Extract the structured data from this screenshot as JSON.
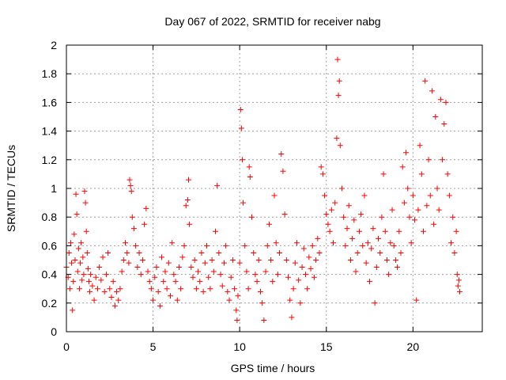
{
  "chart_data": {
    "type": "scatter",
    "title": "Day 067 of 2022, SRMTID for receiver nabg",
    "xlabel": "GPS time / hours",
    "ylabel": "SRMTID / TECUs",
    "xlim": [
      0,
      24
    ],
    "ylim": [
      0,
      2
    ],
    "xticks": [
      0,
      5,
      10,
      15,
      20
    ],
    "yticks": [
      0,
      0.2,
      0.4,
      0.6,
      0.8,
      1,
      1.2,
      1.4,
      1.6,
      1.8,
      2
    ],
    "xtick_labels": [
      "0",
      "5",
      "10",
      "15",
      "20"
    ],
    "ytick_labels": [
      "0",
      "0.2",
      "0.4",
      "0.6",
      "0.8",
      "1",
      "1.2",
      "1.4",
      "1.6",
      "1.8",
      "2"
    ],
    "grid": true,
    "marker": "+",
    "color": "#ff0000",
    "series": [
      {
        "name": "SRMTID",
        "points": [
          [
            0.0,
            0.45
          ],
          [
            0.1,
            0.38
          ],
          [
            0.15,
            0.55
          ],
          [
            0.2,
            0.3
          ],
          [
            0.25,
            0.62
          ],
          [
            0.3,
            0.48
          ],
          [
            0.35,
            0.15
          ],
          [
            0.4,
            0.35
          ],
          [
            0.45,
            0.68
          ],
          [
            0.5,
            0.5
          ],
          [
            0.55,
            0.96
          ],
          [
            0.6,
            0.82
          ],
          [
            0.65,
            0.42
          ],
          [
            0.7,
            0.58
          ],
          [
            0.75,
            0.3
          ],
          [
            0.8,
            0.48
          ],
          [
            0.85,
            0.62
          ],
          [
            0.9,
            0.36
          ],
          [
            0.95,
            0.52
          ],
          [
            1.0,
            0.4
          ],
          [
            1.05,
            0.98
          ],
          [
            1.1,
            0.9
          ],
          [
            1.15,
            0.7
          ],
          [
            1.2,
            0.55
          ],
          [
            1.25,
            0.44
          ],
          [
            1.3,
            0.35
          ],
          [
            1.35,
            0.28
          ],
          [
            1.4,
            0.4
          ],
          [
            1.5,
            0.32
          ],
          [
            1.6,
            0.22
          ],
          [
            1.7,
            0.38
          ],
          [
            1.8,
            0.3
          ],
          [
            1.9,
            0.45
          ],
          [
            2.0,
            0.36
          ],
          [
            2.1,
            0.52
          ],
          [
            2.2,
            0.28
          ],
          [
            2.3,
            0.4
          ],
          [
            2.4,
            0.55
          ],
          [
            2.5,
            0.3
          ],
          [
            2.6,
            0.24
          ],
          [
            2.7,
            0.35
          ],
          [
            2.8,
            0.18
          ],
          [
            2.9,
            0.28
          ],
          [
            3.0,
            0.22
          ],
          [
            3.1,
            0.3
          ],
          [
            3.2,
            0.42
          ],
          [
            3.3,
            0.5
          ],
          [
            3.4,
            0.62
          ],
          [
            3.5,
            0.55
          ],
          [
            3.6,
            0.48
          ],
          [
            3.65,
            1.06
          ],
          [
            3.7,
            1.02
          ],
          [
            3.75,
            0.98
          ],
          [
            3.8,
            0.8
          ],
          [
            3.9,
            0.72
          ],
          [
            4.0,
            0.6
          ],
          [
            4.1,
            0.45
          ],
          [
            4.2,
            0.55
          ],
          [
            4.3,
            0.4
          ],
          [
            4.4,
            0.5
          ],
          [
            4.5,
            0.75
          ],
          [
            4.6,
            0.86
          ],
          [
            4.7,
            0.42
          ],
          [
            4.8,
            0.35
          ],
          [
            4.9,
            0.3
          ],
          [
            5.0,
            0.22
          ],
          [
            5.1,
            0.38
          ],
          [
            5.2,
            0.45
          ],
          [
            5.3,
            0.28
          ],
          [
            5.4,
            0.18
          ],
          [
            5.5,
            0.52
          ],
          [
            5.6,
            0.35
          ],
          [
            5.7,
            0.42
          ],
          [
            5.8,
            0.3
          ],
          [
            5.9,
            0.48
          ],
          [
            6.0,
            0.25
          ],
          [
            6.1,
            0.62
          ],
          [
            6.2,
            0.4
          ],
          [
            6.3,
            0.35
          ],
          [
            6.4,
            0.22
          ],
          [
            6.5,
            0.45
          ],
          [
            6.6,
            0.3
          ],
          [
            6.7,
            0.52
          ],
          [
            6.8,
            0.6
          ],
          [
            6.9,
            0.88
          ],
          [
            7.0,
            0.92
          ],
          [
            7.05,
            1.06
          ],
          [
            7.1,
            0.75
          ],
          [
            7.2,
            0.45
          ],
          [
            7.3,
            0.38
          ],
          [
            7.4,
            0.5
          ],
          [
            7.5,
            0.3
          ],
          [
            7.6,
            0.42
          ],
          [
            7.7,
            0.35
          ],
          [
            7.8,
            0.55
          ],
          [
            7.9,
            0.28
          ],
          [
            8.0,
            0.48
          ],
          [
            8.1,
            0.6
          ],
          [
            8.2,
            0.38
          ],
          [
            8.3,
            0.3
          ],
          [
            8.4,
            0.5
          ],
          [
            8.5,
            0.42
          ],
          [
            8.6,
            0.7
          ],
          [
            8.7,
            1.02
          ],
          [
            8.8,
            0.55
          ],
          [
            8.9,
            0.4
          ],
          [
            9.0,
            0.32
          ],
          [
            9.1,
            0.48
          ],
          [
            9.2,
            0.6
          ],
          [
            9.3,
            0.28
          ],
          [
            9.4,
            0.22
          ],
          [
            9.5,
            0.38
          ],
          [
            9.6,
            0.5
          ],
          [
            9.7,
            0.3
          ],
          [
            9.8,
            0.15
          ],
          [
            9.85,
            0.08
          ],
          [
            9.9,
            0.25
          ],
          [
            10.0,
            0.48
          ],
          [
            10.05,
            1.55
          ],
          [
            10.1,
            1.42
          ],
          [
            10.15,
            1.2
          ],
          [
            10.2,
            0.9
          ],
          [
            10.3,
            0.6
          ],
          [
            10.4,
            0.42
          ],
          [
            10.5,
            0.3
          ],
          [
            10.55,
            1.15
          ],
          [
            10.6,
            1.08
          ],
          [
            10.7,
            0.8
          ],
          [
            10.8,
            0.55
          ],
          [
            10.9,
            0.4
          ],
          [
            11.0,
            0.35
          ],
          [
            11.1,
            0.5
          ],
          [
            11.2,
            0.28
          ],
          [
            11.3,
            0.2
          ],
          [
            11.4,
            0.08
          ],
          [
            11.5,
            0.42
          ],
          [
            11.6,
            0.6
          ],
          [
            11.7,
            0.75
          ],
          [
            11.8,
            0.5
          ],
          [
            11.9,
            0.35
          ],
          [
            12.0,
            0.95
          ],
          [
            12.1,
            0.62
          ],
          [
            12.2,
            0.4
          ],
          [
            12.3,
            0.55
          ],
          [
            12.4,
            1.24
          ],
          [
            12.5,
            1.12
          ],
          [
            12.6,
            0.82
          ],
          [
            12.7,
            0.5
          ],
          [
            12.8,
            0.38
          ],
          [
            12.9,
            0.22
          ],
          [
            13.0,
            0.1
          ],
          [
            13.1,
            0.3
          ],
          [
            13.2,
            0.48
          ],
          [
            13.3,
            0.62
          ],
          [
            13.4,
            0.36
          ],
          [
            13.5,
            0.2
          ],
          [
            13.6,
            0.45
          ],
          [
            13.7,
            0.58
          ],
          [
            13.8,
            0.4
          ],
          [
            13.9,
            0.3
          ],
          [
            14.0,
            0.52
          ],
          [
            14.1,
            0.44
          ],
          [
            14.2,
            0.6
          ],
          [
            14.3,
            0.38
          ],
          [
            14.4,
            0.5
          ],
          [
            14.5,
            0.65
          ],
          [
            14.6,
            0.55
          ],
          [
            14.7,
            1.15
          ],
          [
            14.8,
            1.1
          ],
          [
            14.9,
            0.95
          ],
          [
            15.0,
            0.82
          ],
          [
            15.1,
            0.75
          ],
          [
            15.2,
            0.7
          ],
          [
            15.3,
            0.85
          ],
          [
            15.4,
            0.62
          ],
          [
            15.5,
            0.9
          ],
          [
            15.6,
            1.35
          ],
          [
            15.65,
            1.9
          ],
          [
            15.7,
            1.65
          ],
          [
            15.75,
            1.75
          ],
          [
            15.8,
            1.3
          ],
          [
            15.9,
            1.0
          ],
          [
            16.0,
            0.8
          ],
          [
            16.1,
            0.6
          ],
          [
            16.2,
            0.72
          ],
          [
            16.3,
            0.88
          ],
          [
            16.4,
            0.5
          ],
          [
            16.5,
            0.65
          ],
          [
            16.6,
            0.78
          ],
          [
            16.7,
            0.42
          ],
          [
            16.8,
            0.55
          ],
          [
            16.9,
            0.7
          ],
          [
            17.0,
            0.82
          ],
          [
            17.1,
            0.6
          ],
          [
            17.2,
            0.95
          ],
          [
            17.3,
            0.48
          ],
          [
            17.4,
            0.62
          ],
          [
            17.5,
            0.35
          ],
          [
            17.6,
            0.58
          ],
          [
            17.7,
            0.72
          ],
          [
            17.8,
            0.2
          ],
          [
            17.9,
            0.45
          ],
          [
            18.0,
            0.65
          ],
          [
            18.1,
            0.55
          ],
          [
            18.2,
            0.8
          ],
          [
            18.3,
            1.1
          ],
          [
            18.4,
            0.7
          ],
          [
            18.5,
            0.5
          ],
          [
            18.6,
            0.4
          ],
          [
            18.7,
            0.62
          ],
          [
            18.8,
            0.85
          ],
          [
            18.9,
            0.6
          ],
          [
            19.0,
            0.5
          ],
          [
            19.1,
            0.45
          ],
          [
            19.2,
            0.7
          ],
          [
            19.3,
            0.55
          ],
          [
            19.4,
            1.15
          ],
          [
            19.5,
            0.9
          ],
          [
            19.6,
            1.25
          ],
          [
            19.7,
            1.0
          ],
          [
            19.8,
            0.8
          ],
          [
            19.9,
            0.62
          ],
          [
            20.0,
            0.95
          ],
          [
            20.1,
            0.78
          ],
          [
            20.2,
            0.22
          ],
          [
            20.3,
            0.85
          ],
          [
            20.4,
            1.3
          ],
          [
            20.5,
            1.1
          ],
          [
            20.6,
            0.7
          ],
          [
            20.7,
            1.75
          ],
          [
            20.8,
            0.88
          ],
          [
            20.9,
            1.2
          ],
          [
            21.0,
            0.95
          ],
          [
            21.1,
            1.68
          ],
          [
            21.2,
            0.75
          ],
          [
            21.3,
            1.5
          ],
          [
            21.4,
            1.0
          ],
          [
            21.5,
            0.85
          ],
          [
            21.6,
            1.62
          ],
          [
            21.7,
            1.2
          ],
          [
            21.8,
            1.45
          ],
          [
            21.9,
            1.6
          ],
          [
            22.0,
            1.1
          ],
          [
            22.1,
            0.95
          ],
          [
            22.2,
            0.62
          ],
          [
            22.3,
            0.8
          ],
          [
            22.4,
            0.55
          ],
          [
            22.5,
            0.7
          ],
          [
            22.55,
            0.4
          ],
          [
            22.6,
            0.32
          ],
          [
            22.65,
            0.36
          ],
          [
            22.7,
            0.28
          ]
        ]
      }
    ]
  }
}
